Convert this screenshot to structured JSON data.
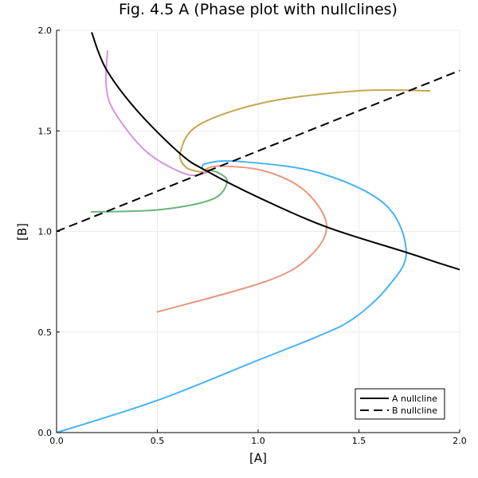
{
  "chart_data": {
    "type": "line",
    "title": "Fig. 4.5 A (Phase plot with nullclines)",
    "xlabel": "[A]",
    "ylabel": "[B]",
    "xlim": [
      0,
      2
    ],
    "ylim": [
      0,
      2
    ],
    "xticks": [
      "0.0",
      "0.5",
      "1.0",
      "1.5",
      "2.0"
    ],
    "yticks": [
      "0.0",
      "0.5",
      "1.0",
      "1.5",
      "2.0"
    ],
    "xtick_values": [
      0,
      0.5,
      1.0,
      1.5,
      2.0
    ],
    "ytick_values": [
      0,
      0.5,
      1.0,
      1.5,
      2.0
    ],
    "grid": true,
    "legend_position": "bottom-right",
    "series": [
      {
        "name": "A nullcline",
        "legend": true,
        "color": "#000000",
        "dash": "solid",
        "points": [
          [
            0.174,
            1.99
          ],
          [
            0.246,
            1.807
          ],
          [
            0.4,
            1.6
          ],
          [
            0.615,
            1.385
          ],
          [
            0.747,
            1.299
          ],
          [
            1.0,
            1.17
          ],
          [
            1.34,
            1.022
          ],
          [
            1.735,
            0.896
          ],
          [
            1.893,
            0.844
          ],
          [
            2.0,
            0.81
          ]
        ]
      },
      {
        "name": "B nullcline",
        "legend": true,
        "color": "#000000",
        "dash": "dashed",
        "points": [
          [
            0,
            1.0
          ],
          [
            2.0,
            1.8
          ]
        ]
      },
      {
        "name": "trajectory 1",
        "legend": false,
        "color": "#47b3f5",
        "dash": "solid",
        "points": [
          [
            0,
            0
          ],
          [
            0.5,
            0.16
          ],
          [
            1.0,
            0.36
          ],
          [
            1.3,
            0.48
          ],
          [
            1.472,
            0.566
          ],
          [
            1.64,
            0.72
          ],
          [
            1.735,
            0.896
          ],
          [
            1.63,
            1.134
          ],
          [
            1.3,
            1.292
          ],
          [
            0.905,
            1.348
          ],
          [
            0.747,
            1.339
          ],
          [
            0.723,
            1.312
          ],
          [
            0.745,
            1.3
          ]
        ]
      },
      {
        "name": "trajectory 2",
        "legend": false,
        "color": "#e8977a",
        "dash": "solid",
        "points": [
          [
            0.497,
            0.599
          ],
          [
            1.037,
            0.751
          ],
          [
            1.25,
            0.87
          ],
          [
            1.34,
            1.028
          ],
          [
            1.234,
            1.2
          ],
          [
            1.037,
            1.299
          ],
          [
            0.813,
            1.325
          ],
          [
            0.734,
            1.306
          ],
          [
            0.75,
            1.3
          ]
        ]
      },
      {
        "name": "trajectory 3",
        "legend": false,
        "color": "#6db37a",
        "dash": "solid",
        "points": [
          [
            0.17,
            1.097
          ],
          [
            0.51,
            1.108
          ],
          [
            0.773,
            1.16
          ],
          [
            0.846,
            1.246
          ],
          [
            0.8,
            1.293
          ],
          [
            0.747,
            1.305
          ]
        ]
      },
      {
        "name": "trajectory 4",
        "legend": false,
        "color": "#c4a74e",
        "dash": "solid",
        "points": [
          [
            1.854,
            1.699
          ],
          [
            1.498,
            1.699
          ],
          [
            1.037,
            1.642
          ],
          [
            0.707,
            1.53
          ],
          [
            0.615,
            1.398
          ],
          [
            0.642,
            1.319
          ],
          [
            0.734,
            1.293
          ],
          [
            0.75,
            1.3
          ]
        ]
      },
      {
        "name": "trajectory 5",
        "legend": false,
        "color": "#d493e0",
        "dash": "solid",
        "points": [
          [
            0.253,
            1.9
          ],
          [
            0.246,
            1.728
          ],
          [
            0.286,
            1.596
          ],
          [
            0.444,
            1.398
          ],
          [
            0.642,
            1.285
          ],
          [
            0.747,
            1.293
          ]
        ]
      }
    ],
    "legend_entries": [
      "A nullcline",
      "B nullcline"
    ]
  }
}
